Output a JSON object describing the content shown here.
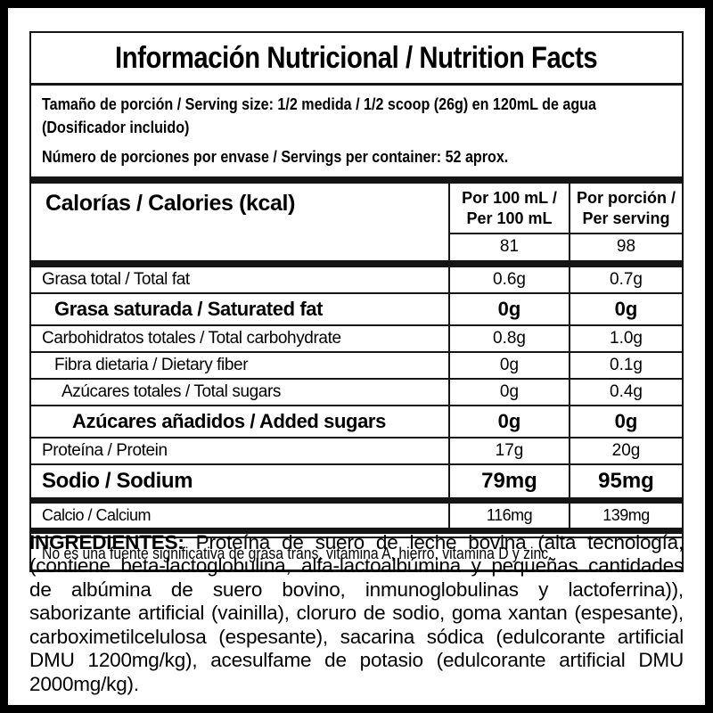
{
  "title": "Información Nutricional / Nutrition Facts",
  "serving_info": {
    "serving_size": "Tamaño de porción / Serving size: 1/2 medida / 1/2 scoop (26g) en 120mL de agua",
    "serving_size_note": "(Dosificador incluido)",
    "servings_per_container": "Número de porciones por envase / Servings per container: 52 aprox."
  },
  "table": {
    "calories": {
      "label": "Calorías / Calories (kcal)",
      "col1_header_line1": "Por 100 mL /",
      "col1_header_line2": "Per 100 mL",
      "col2_header_line1": "Por porción /",
      "col2_header_line2": "Per serving",
      "col1_value": "81",
      "col2_value": "98"
    },
    "rows": [
      {
        "label": "Grasa total / Total fat",
        "per_100ml": "0.6g",
        "per_serving": "0.7g"
      },
      {
        "label": "Grasa saturada / Saturated fat",
        "per_100ml": "0g",
        "per_serving": "0g"
      },
      {
        "label": "Carbohidratos totales / Total carbohydrate",
        "per_100ml": "0.8g",
        "per_serving": "1.0g"
      },
      {
        "label": "Fibra dietaria / Dietary fiber",
        "per_100ml": "0g",
        "per_serving": "0.1g"
      },
      {
        "label": "Azúcares totales / Total sugars",
        "per_100ml": "0g",
        "per_serving": "0.4g"
      },
      {
        "label": "Azúcares añadidos / Added sugars",
        "per_100ml": "0g",
        "per_serving": "0g"
      },
      {
        "label": "Proteína / Protein",
        "per_100ml": "17g",
        "per_serving": "20g"
      },
      {
        "label": "Sodio / Sodium",
        "per_100ml": "79mg",
        "per_serving": "95mg"
      },
      {
        "label": "Calcio / Calcium",
        "per_100ml": "116mg",
        "per_serving": "139mg"
      }
    ],
    "footnote": "No es una fuente significativa de grasa trans, vitamina A, hierro, vitamina D y zinc."
  },
  "ingredients": {
    "label": "INGREDIENTES:",
    "text": "Proteína de suero de leche bovina (alta tecnología, (contiene beta-lactoglobulina, alfa-lactoalbúmina y pequeñas cantidades de albúmina de suero bovino, inmunoglobulinas y lactoferrina)), saborizante artificial (vainilla), cloruro de sodio, goma xantan (espesante), carboximetilcelulosa (espesante), sacarina sódica (edulcorante artificial DMU 1200mg/kg), acesulfame de potasio (edulcorante artificial DMU 2000mg/kg)."
  },
  "colors": {
    "text": "#000000",
    "background": "#ffffff",
    "border": "#151515",
    "frame": "#000000"
  }
}
